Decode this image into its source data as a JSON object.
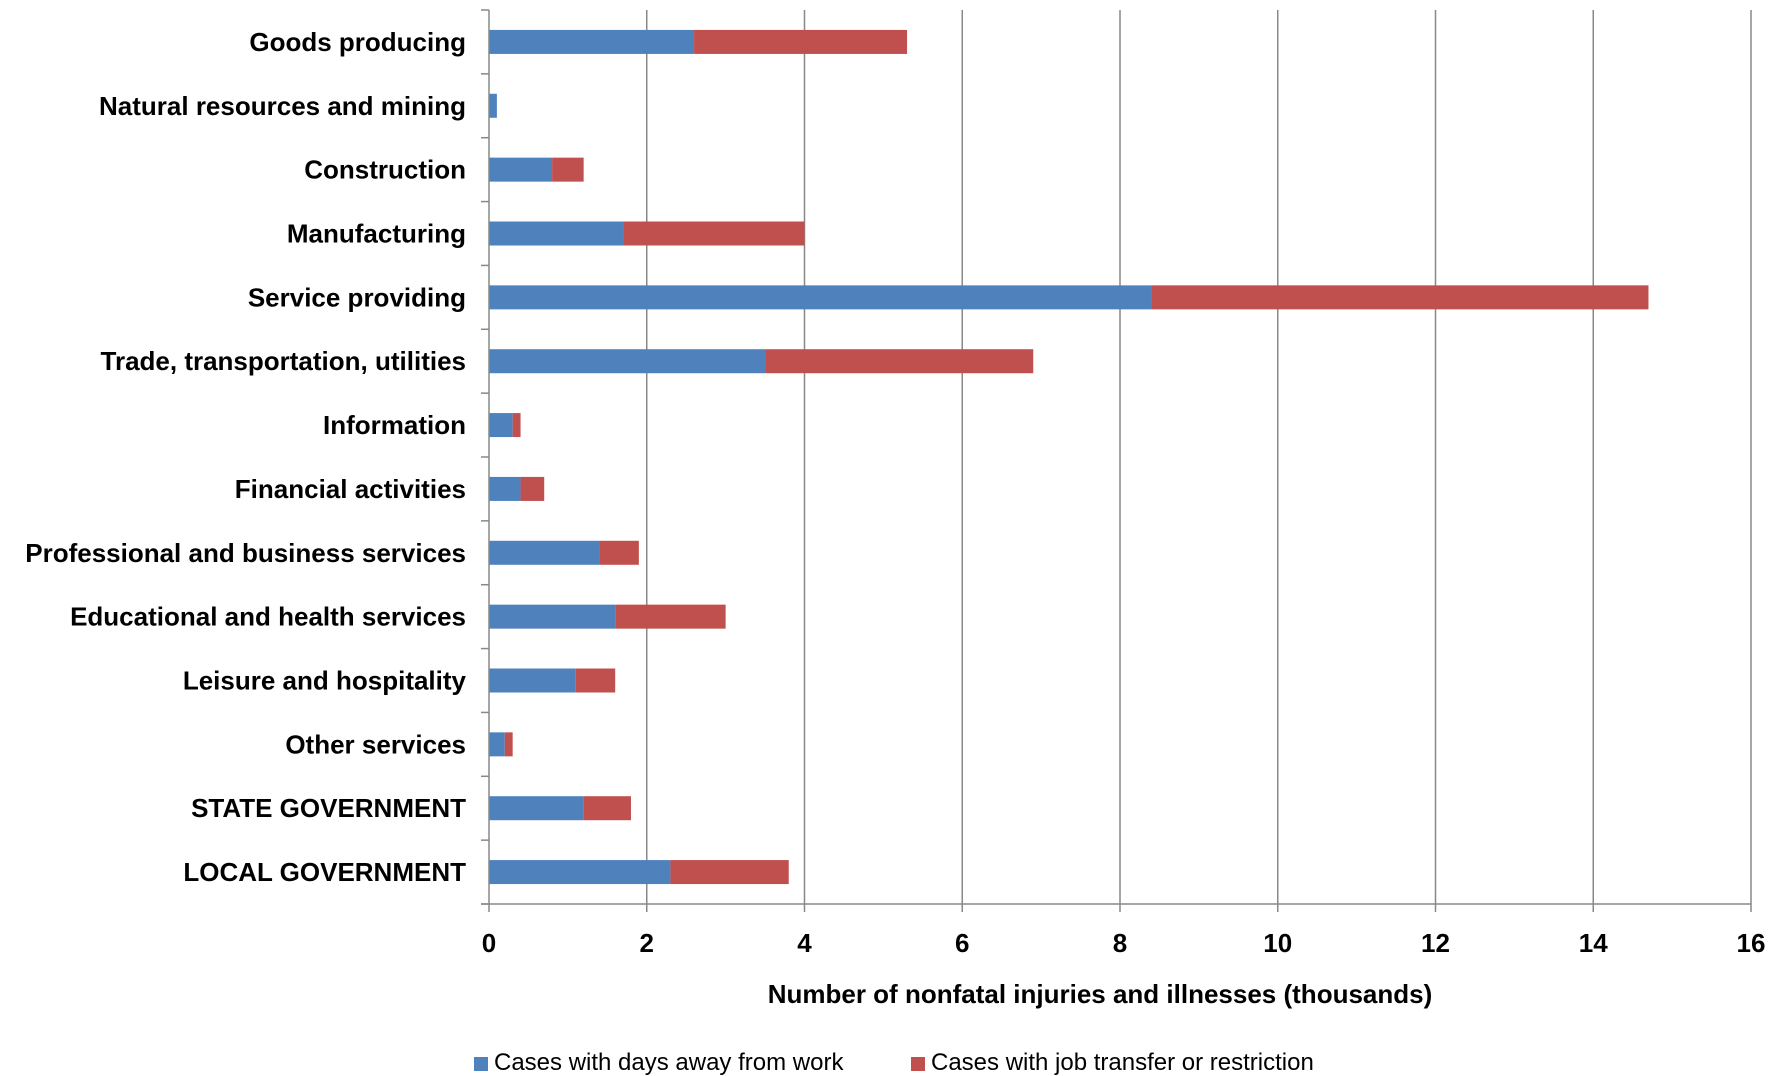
{
  "chart_data": {
    "type": "bar",
    "orientation": "horizontal",
    "stacked": true,
    "categories": [
      "Goods producing",
      "Natural resources and mining",
      "Construction",
      "Manufacturing",
      "Service providing",
      "Trade, transportation, utilities",
      "Information",
      "Financial activities",
      "Professional and business services",
      "Educational and health services",
      "Leisure and hospitality",
      "Other services",
      "STATE GOVERNMENT",
      "LOCAL GOVERNMENT"
    ],
    "series": [
      {
        "name": "Cases with days away from work",
        "color": "#4F81BD",
        "values": [
          2.6,
          0.1,
          0.8,
          1.7,
          8.4,
          3.5,
          0.3,
          0.4,
          1.4,
          1.6,
          1.1,
          0.2,
          1.2,
          2.3
        ]
      },
      {
        "name": "Cases with job transfer or restriction",
        "color": "#C0504D",
        "values": [
          2.7,
          0.0,
          0.4,
          2.3,
          6.3,
          3.4,
          0.1,
          0.3,
          0.5,
          1.4,
          0.5,
          0.1,
          0.6,
          1.5
        ]
      }
    ],
    "xlabel": "Number of nonfatal injuries and illnesses (thousands)",
    "ylabel": "",
    "xlim": [
      0,
      16
    ],
    "xticks": [
      0,
      2,
      4,
      6,
      8,
      10,
      12,
      14,
      16
    ],
    "grid": "vertical",
    "legend_position": "bottom",
    "colors": {
      "gridline": "#888888",
      "axis": "#888888"
    }
  }
}
